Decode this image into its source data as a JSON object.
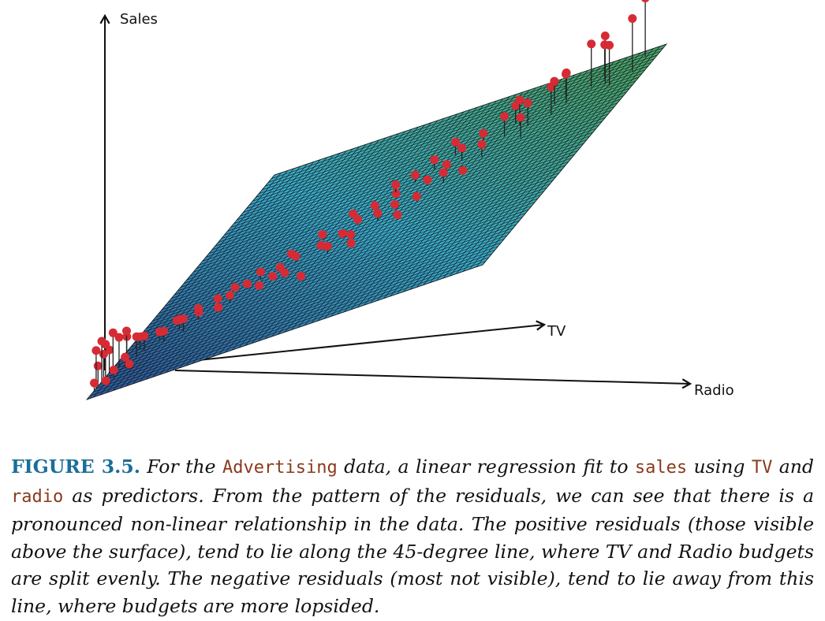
{
  "chart_data": {
    "type": "scatter",
    "subtype": "3d-regression-plane-with-residuals",
    "title": "",
    "axes": {
      "z_label": "Sales",
      "x_label": "TV",
      "y_label": "Radio"
    },
    "grid": false,
    "legend": "none",
    "plane": {
      "description": "Least-squares regression plane of sales on TV and radio",
      "color_low": "#2f5f9e",
      "color_mid": "#3aaccc",
      "color_high": "#4aa56e",
      "mesh_line_color": "#111111"
    },
    "point_color": "#d62b35",
    "residual_line_color": "#222222",
    "point_fields": [
      "tv_frac",
      "radio_frac",
      "residual",
      "visible_above_surface"
    ],
    "points": [
      [
        0.97,
        0.96,
        2.3,
        true
      ],
      [
        0.9,
        0.96,
        2.1,
        true
      ],
      [
        0.88,
        0.9,
        1.9,
        true
      ],
      [
        0.86,
        0.92,
        1.6,
        true
      ],
      [
        0.89,
        0.86,
        1.7,
        true
      ],
      [
        0.92,
        0.88,
        1.3,
        true
      ],
      [
        0.84,
        0.82,
        1.2,
        true
      ],
      [
        0.8,
        0.8,
        1.1,
        true
      ],
      [
        0.86,
        0.78,
        0.9,
        true
      ],
      [
        0.78,
        0.75,
        0.9,
        true
      ],
      [
        0.88,
        0.8,
        0.9,
        true
      ],
      [
        0.82,
        0.7,
        0.7,
        true
      ],
      [
        0.76,
        0.7,
        0.8,
        true
      ],
      [
        0.73,
        0.66,
        0.6,
        true
      ],
      [
        0.8,
        0.72,
        1.0,
        true
      ],
      [
        0.7,
        0.62,
        0.5,
        true
      ],
      [
        0.66,
        0.6,
        0.3,
        true
      ],
      [
        0.75,
        0.58,
        0.5,
        true
      ],
      [
        0.7,
        0.55,
        0.4,
        true
      ],
      [
        0.62,
        0.57,
        0.2,
        true
      ],
      [
        0.66,
        0.52,
        0.3,
        true
      ],
      [
        0.6,
        0.5,
        0.2,
        true
      ],
      [
        0.64,
        0.48,
        0.3,
        true
      ],
      [
        0.57,
        0.46,
        0.2,
        true
      ],
      [
        0.55,
        0.52,
        0.1,
        true
      ],
      [
        0.52,
        0.44,
        0.2,
        true
      ],
      [
        0.58,
        0.4,
        0.1,
        true
      ],
      [
        0.48,
        0.42,
        0.1,
        true
      ],
      [
        0.5,
        0.36,
        0.2,
        true
      ],
      [
        0.45,
        0.38,
        0.1,
        true
      ],
      [
        0.42,
        0.33,
        0.2,
        true
      ],
      [
        0.46,
        0.3,
        0.1,
        true
      ],
      [
        0.4,
        0.3,
        0.1,
        true
      ],
      [
        0.38,
        0.26,
        0.3,
        true
      ],
      [
        0.35,
        0.24,
        0.2,
        true
      ],
      [
        0.37,
        0.2,
        0.1,
        true
      ],
      [
        0.33,
        0.28,
        0.1,
        true
      ],
      [
        0.3,
        0.22,
        0.3,
        true
      ],
      [
        0.32,
        0.18,
        0.2,
        true
      ],
      [
        0.28,
        0.2,
        0.1,
        true
      ],
      [
        0.26,
        0.16,
        0.3,
        true
      ],
      [
        0.3,
        0.14,
        0.2,
        true
      ],
      [
        0.24,
        0.12,
        0.4,
        true
      ],
      [
        0.27,
        0.1,
        0.2,
        true
      ],
      [
        0.22,
        0.14,
        0.5,
        true
      ],
      [
        0.2,
        0.1,
        0.4,
        true
      ],
      [
        0.22,
        0.08,
        0.3,
        true
      ],
      [
        0.18,
        0.06,
        0.6,
        true
      ],
      [
        0.2,
        0.04,
        0.5,
        true
      ],
      [
        0.16,
        0.05,
        0.8,
        true
      ],
      [
        0.15,
        0.03,
        1.0,
        true
      ],
      [
        0.13,
        0.02,
        1.2,
        true
      ],
      [
        0.17,
        0.02,
        1.1,
        true
      ],
      [
        0.12,
        0.0,
        0.9,
        true
      ],
      [
        0.1,
        0.0,
        1.3,
        true
      ],
      [
        0.14,
        0.0,
        1.4,
        true
      ],
      [
        0.09,
        0.0,
        1.0,
        true
      ],
      [
        0.06,
        0.0,
        0.8,
        true
      ],
      [
        0.08,
        0.0,
        1.6,
        true
      ],
      [
        0.05,
        0.0,
        1.5,
        true
      ],
      [
        0.12,
        0.04,
        0.4,
        true
      ],
      [
        0.1,
        0.06,
        0.2,
        true
      ],
      [
        0.08,
        0.03,
        0.3,
        true
      ],
      [
        0.04,
        0.0,
        0.3,
        true
      ],
      [
        0.06,
        0.02,
        0.1,
        true
      ],
      [
        0.34,
        0.34,
        0.2,
        true
      ],
      [
        0.4,
        0.42,
        0.3,
        true
      ],
      [
        0.44,
        0.46,
        0.2,
        true
      ],
      [
        0.5,
        0.5,
        0.3,
        true
      ],
      [
        0.54,
        0.58,
        0.2,
        true
      ],
      [
        0.6,
        0.62,
        0.4,
        true
      ],
      [
        0.68,
        0.68,
        0.5,
        true
      ],
      [
        0.72,
        0.76,
        0.8,
        true
      ],
      [
        0.62,
        0.66,
        0.1,
        true
      ],
      [
        0.48,
        0.56,
        0.1,
        true
      ],
      [
        0.4,
        0.48,
        0.1,
        true
      ],
      [
        0.3,
        0.4,
        0.1,
        true
      ],
      [
        0.36,
        0.3,
        0.1,
        true
      ],
      [
        0.95,
        0.35,
        -0.4,
        false
      ],
      [
        0.93,
        0.22,
        -1.4,
        false
      ],
      [
        0.9,
        0.18,
        -1.9,
        false
      ],
      [
        0.97,
        0.12,
        -3.4,
        false
      ],
      [
        0.88,
        0.1,
        -1.3,
        false
      ],
      [
        0.85,
        0.08,
        -1.0,
        false
      ],
      [
        0.8,
        0.06,
        -0.9,
        false
      ],
      [
        0.86,
        0.03,
        -2.2,
        false
      ],
      [
        0.83,
        0.02,
        -1.9,
        false
      ],
      [
        0.78,
        0.02,
        -0.7,
        false
      ],
      [
        0.72,
        0.01,
        -1.0,
        false
      ],
      [
        0.68,
        0.0,
        -0.5,
        false
      ],
      [
        0.62,
        0.0,
        -1.3,
        false
      ],
      [
        0.64,
        0.02,
        -1.6,
        false
      ],
      [
        0.6,
        0.0,
        -1.5,
        false
      ],
      [
        0.74,
        0.0,
        -0.8,
        false
      ],
      [
        0.5,
        0.0,
        -0.6,
        false
      ],
      [
        0.4,
        0.0,
        -0.7,
        false
      ],
      [
        0.3,
        0.0,
        -0.5,
        false
      ],
      [
        0.2,
        0.0,
        -1.1,
        false
      ],
      [
        0.12,
        0.0,
        -0.4,
        false
      ],
      [
        0.24,
        0.0,
        -0.9,
        false
      ],
      [
        0.55,
        0.0,
        -1.1,
        false
      ]
    ]
  },
  "caption": {
    "figure_number": "FIGURE 3.5.",
    "t1": " For the ",
    "code1": "Advertising",
    "t2": " data, a linear regression fit to ",
    "code2": "sales",
    "t3": " using ",
    "code3": "TV",
    "t4": " and ",
    "code4": "radio",
    "t5": " as predictors. From the pattern of the residuals, we can see that there is a pronounced non-linear relationship in the data. The positive residuals (those visible above the surface), tend to lie along the 45-degree line, where TV and Radio budgets are split evenly. The negative residuals (most not visible), tend to lie away from this line, where budgets are more lopsided."
  }
}
